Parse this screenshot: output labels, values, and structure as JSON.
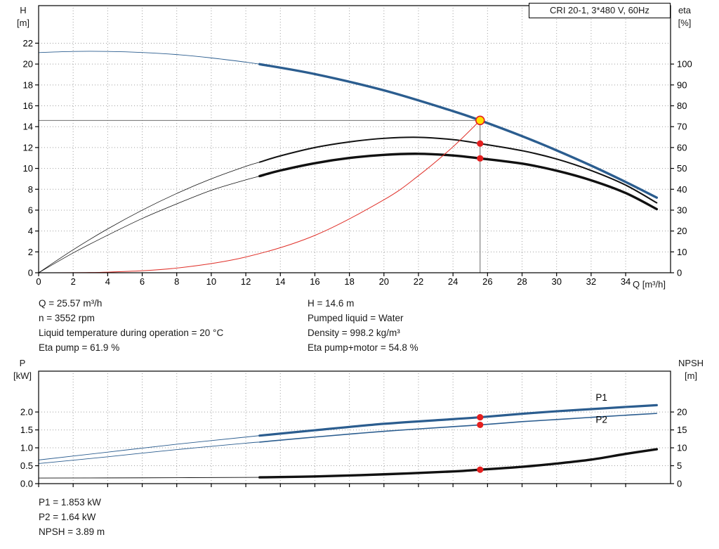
{
  "title_box": {
    "label": "CRI 20-1, 3*480 V, 60Hz"
  },
  "colors": {
    "curve_blue": "#2b5d8f",
    "curve_black": "#111111",
    "curve_red": "#e0312a",
    "marker_dot_red": "#e51f1f",
    "marker_duty_fill": "#ffe100",
    "marker_duty_ring": "#e51f1f",
    "crosshair": "#5a5a5a",
    "grid": "#a0a0a0"
  },
  "top_chart": {
    "left_axis_title": [
      "H",
      "[m]"
    ],
    "right_axis_title": [
      "eta",
      "[%]"
    ],
    "x_axis_title": "Q [m³/h]"
  },
  "bottom_chart": {
    "left_axis_title": [
      "P",
      "[kW]"
    ],
    "right_axis_title": [
      "NPSH",
      "[m]"
    ]
  },
  "top_info": {
    "left": [
      "Q = 25.57 m³/h",
      "n = 3552 rpm",
      "Liquid temperature during operation = 20 °C",
      "Eta pump = 61.9 %"
    ],
    "right": [
      "H = 14.6 m",
      "Pumped liquid = Water",
      "Density = 998.2 kg/m³",
      "Eta pump+motor = 54.8 %"
    ]
  },
  "bottom_info": [
    "P1 = 1.853 kW",
    "P2 = 1.64 kW",
    "NPSH = 3.89 m"
  ],
  "chart_data": [
    {
      "type": "line",
      "title": "CRI 20-1, 3*480 V, 60Hz",
      "xlabel": "Q [m³/h]",
      "ylabel_left": "H [m]",
      "ylabel_right": "eta [%]",
      "xlim": [
        0,
        36.6
      ],
      "ylim_left": [
        0,
        25.6
      ],
      "right_axis_left_units_per_unit": 0.2,
      "x_decimals": 0,
      "left_decimals": 0,
      "right_decimals": 0,
      "x_ticks": [
        0,
        2,
        4,
        6,
        8,
        10,
        12,
        14,
        16,
        18,
        20,
        22,
        24,
        26,
        28,
        30,
        32,
        34
      ],
      "x_tick_labels": true,
      "y_ticks_left": [
        0,
        2,
        4,
        6,
        8,
        10,
        12,
        14,
        16,
        18,
        20,
        22
      ],
      "y_ticks_right": [
        0,
        10,
        20,
        30,
        40,
        50,
        60,
        70,
        80,
        90,
        100
      ],
      "grid": true,
      "legend": "none",
      "crosshair": {
        "q": 25.57,
        "value": 14.6
      },
      "series": [
        {
          "name": "head-curve",
          "color": "#2b5d8f",
          "axis": "left",
          "width": 3.4,
          "ext_width": 0.9,
          "ext": [
            [
              0,
              21.1
            ],
            [
              2,
              21.21
            ],
            [
              4,
              21.21
            ],
            [
              6,
              21.11
            ],
            [
              8,
              20.91
            ],
            [
              10,
              20.59
            ],
            [
              12,
              20.18
            ],
            [
              12.8,
              19.99
            ]
          ],
          "points": [
            [
              12.8,
              19.99
            ],
            [
              16,
              19.04
            ],
            [
              20,
              17.48
            ],
            [
              24,
              15.49
            ],
            [
              25.57,
              14.6
            ],
            [
              28,
              13.09
            ],
            [
              30,
              11.73
            ],
            [
              32,
              10.27
            ],
            [
              34,
              8.7
            ],
            [
              35.8,
              7.2
            ]
          ]
        },
        {
          "name": "eta-pump-curve",
          "color": "#111111",
          "axis": "right",
          "width": 2.0,
          "ext_width": 0.8,
          "ext": [
            [
              0,
              0
            ],
            [
              2,
              11
            ],
            [
              4,
              21
            ],
            [
              6,
              30
            ],
            [
              8,
              38
            ],
            [
              10,
              45
            ],
            [
              12,
              51
            ],
            [
              12.8,
              53
            ]
          ],
          "points": [
            [
              12.8,
              53
            ],
            [
              14,
              56
            ],
            [
              16,
              60
            ],
            [
              18,
              62.7
            ],
            [
              20,
              64.4
            ],
            [
              22,
              64.9
            ],
            [
              24,
              63.8
            ],
            [
              25.57,
              61.9
            ],
            [
              28,
              58.5
            ],
            [
              30,
              54.5
            ],
            [
              32,
              49
            ],
            [
              34,
              42
            ],
            [
              35.8,
              33.5
            ]
          ]
        },
        {
          "name": "eta-pump-motor-curve",
          "color": "#111111",
          "axis": "right",
          "width": 3.4,
          "ext_width": 0.8,
          "ext": [
            [
              0,
              0
            ],
            [
              2,
              9.5
            ],
            [
              4,
              18
            ],
            [
              6,
              26
            ],
            [
              8,
              33
            ],
            [
              10,
              39.5
            ],
            [
              12,
              44.5
            ],
            [
              12.8,
              46.3
            ]
          ],
          "points": [
            [
              12.8,
              46.3
            ],
            [
              14,
              49
            ],
            [
              16,
              52.5
            ],
            [
              18,
              55
            ],
            [
              20,
              56.5
            ],
            [
              22,
              57
            ],
            [
              24,
              56.2
            ],
            [
              25.57,
              54.8
            ],
            [
              28,
              52.3
            ],
            [
              30,
              48.9
            ],
            [
              32,
              44.3
            ],
            [
              34,
              38.2
            ],
            [
              35.8,
              30.5
            ]
          ]
        },
        {
          "name": "system-curve",
          "color": "#e0312a",
          "axis": "left",
          "width": 1,
          "ext_width": 1,
          "ext": [],
          "points": [
            [
              0,
              0
            ],
            [
              4,
              0.06
            ],
            [
              8,
              0.45
            ],
            [
              12,
              1.51
            ],
            [
              16,
              3.58
            ],
            [
              20,
              6.99
            ],
            [
              22,
              9.3
            ],
            [
              24,
              12.07
            ],
            [
              25.57,
              14.6
            ]
          ]
        }
      ],
      "markers": [
        {
          "q": 25.57,
          "value": 14.6,
          "axis": "left",
          "kind": "duty"
        },
        {
          "q": 25.57,
          "value": 61.9,
          "axis": "right",
          "kind": "dot"
        },
        {
          "q": 25.57,
          "value": 54.8,
          "axis": "right",
          "kind": "dot"
        }
      ],
      "curve_labels": []
    },
    {
      "type": "line",
      "title": "",
      "xlabel": "",
      "ylabel_left": "P [kW]",
      "ylabel_right": "NPSH [m]",
      "xlim": [
        0,
        36.6
      ],
      "ylim_left": [
        0,
        3.14
      ],
      "right_axis_left_units_per_unit": 0.1,
      "x_decimals": 0,
      "left_decimals": 1,
      "right_decimals": 0,
      "x_ticks": [
        0,
        2,
        4,
        6,
        8,
        10,
        12,
        14,
        16,
        18,
        20,
        22,
        24,
        26,
        28,
        30,
        32,
        34
      ],
      "x_tick_labels": false,
      "y_ticks_left": [
        0,
        0.5,
        1,
        1.5,
        2
      ],
      "y_ticks_right": [
        0,
        5,
        10,
        15,
        20
      ],
      "grid": true,
      "legend": "inline",
      "crosshair": null,
      "series": [
        {
          "name": "p1-curve",
          "color": "#2b5d8f",
          "axis": "left",
          "width": 3.2,
          "ext_width": 0.9,
          "ext": [
            [
              0,
              0.66
            ],
            [
              4,
              0.88
            ],
            [
              8,
              1.1
            ],
            [
              12,
              1.3
            ],
            [
              12.8,
              1.34
            ]
          ],
          "points": [
            [
              12.8,
              1.34
            ],
            [
              16,
              1.49
            ],
            [
              20,
              1.67
            ],
            [
              24,
              1.8
            ],
            [
              25.57,
              1.853
            ],
            [
              28,
              1.95
            ],
            [
              30,
              2.02
            ],
            [
              32,
              2.08
            ],
            [
              34,
              2.14
            ],
            [
              35.8,
              2.19
            ]
          ]
        },
        {
          "name": "p2-curve",
          "color": "#2b5d8f",
          "axis": "left",
          "width": 1.6,
          "ext_width": 0.9,
          "ext": [
            [
              0,
              0.56
            ],
            [
              4,
              0.75
            ],
            [
              8,
              0.95
            ],
            [
              12,
              1.13
            ],
            [
              12.8,
              1.16
            ]
          ],
          "points": [
            [
              12.8,
              1.16
            ],
            [
              16,
              1.3
            ],
            [
              20,
              1.46
            ],
            [
              24,
              1.59
            ],
            [
              25.57,
              1.64
            ],
            [
              28,
              1.73
            ],
            [
              30,
              1.79
            ],
            [
              32,
              1.85
            ],
            [
              34,
              1.91
            ],
            [
              35.8,
              1.96
            ]
          ]
        },
        {
          "name": "npsh-curve",
          "color": "#111111",
          "axis": "right",
          "width": 3.4,
          "ext_width": 0.9,
          "ext": [
            [
              0,
              1.55
            ],
            [
              6,
              1.62
            ],
            [
              12.8,
              1.75
            ]
          ],
          "points": [
            [
              12.8,
              1.75
            ],
            [
              16,
              2.0
            ],
            [
              20,
              2.6
            ],
            [
              24,
              3.4
            ],
            [
              25.57,
              3.89
            ],
            [
              28,
              4.7
            ],
            [
              30,
              5.6
            ],
            [
              32,
              6.7
            ],
            [
              34,
              8.3
            ],
            [
              35.8,
              9.6
            ]
          ]
        }
      ],
      "markers": [
        {
          "q": 25.57,
          "value": 1.853,
          "axis": "left",
          "kind": "dot"
        },
        {
          "q": 25.57,
          "value": 1.64,
          "axis": "left",
          "kind": "dot"
        },
        {
          "q": 25.57,
          "value": 3.89,
          "axis": "right",
          "kind": "dot"
        }
      ],
      "curve_labels": [
        {
          "text": "P1",
          "q": 32.6,
          "value": 2.32,
          "color": "#2b5d8f"
        },
        {
          "text": "P2",
          "q": 32.6,
          "value": 1.7,
          "color": "#2b5d8f"
        }
      ]
    }
  ]
}
